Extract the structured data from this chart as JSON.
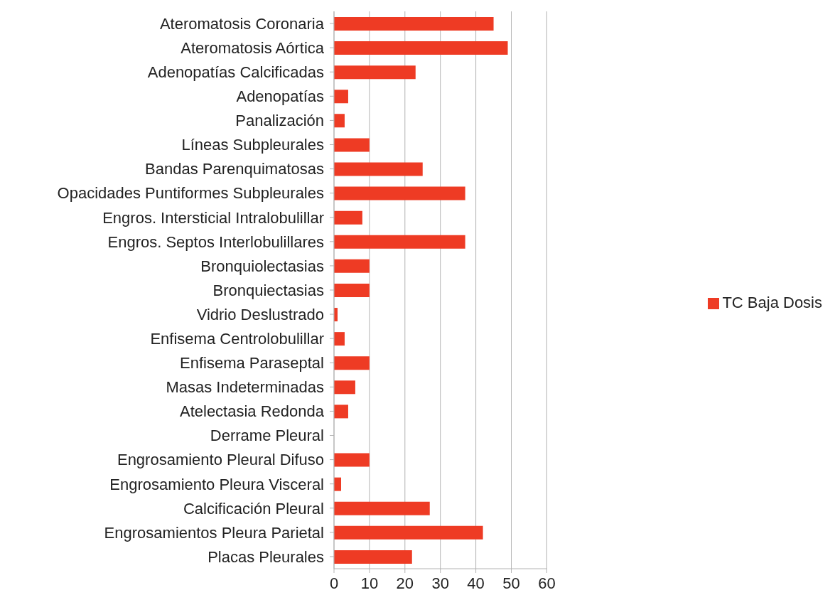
{
  "chart_data": {
    "type": "bar",
    "orientation": "horizontal",
    "categories": [
      "Ateromatosis Coronaria",
      "Ateromatosis Aórtica",
      "Adenopatías Calcificadas",
      "Adenopatías",
      "Panalización",
      "Líneas Subpleurales",
      "Bandas Parenquimatosas",
      "Opacidades Puntiformes Subpleurales",
      "Engros. Intersticial Intralobulillar",
      "Engros. Septos Interlobulillares",
      "Bronquiolectasias",
      "Bronquiectasias",
      "Vidrio Deslustrado",
      "Enfisema Centrolobulillar",
      "Enfisema Paraseptal",
      "Masas Indeterminadas",
      "Atelectasia Redonda",
      "Derrame Pleural",
      "Engrosamiento Pleural Difuso",
      "Engrosamiento Pleura Visceral",
      "Calcificación Pleural",
      "Engrosamientos Pleura Parietal",
      "Placas Pleurales"
    ],
    "series": [
      {
        "name": "TC Baja Dosis",
        "color": "#ee3b24",
        "values": [
          45,
          49,
          23,
          4,
          3,
          10,
          25,
          37,
          8,
          37,
          10,
          10,
          1,
          3,
          10,
          6,
          4,
          0,
          10,
          2,
          27,
          42,
          22
        ]
      }
    ],
    "xlim": [
      0,
      60
    ],
    "xticks": [
      0,
      10,
      20,
      30,
      40,
      50,
      60
    ],
    "grid": "x",
    "legend": "right"
  }
}
